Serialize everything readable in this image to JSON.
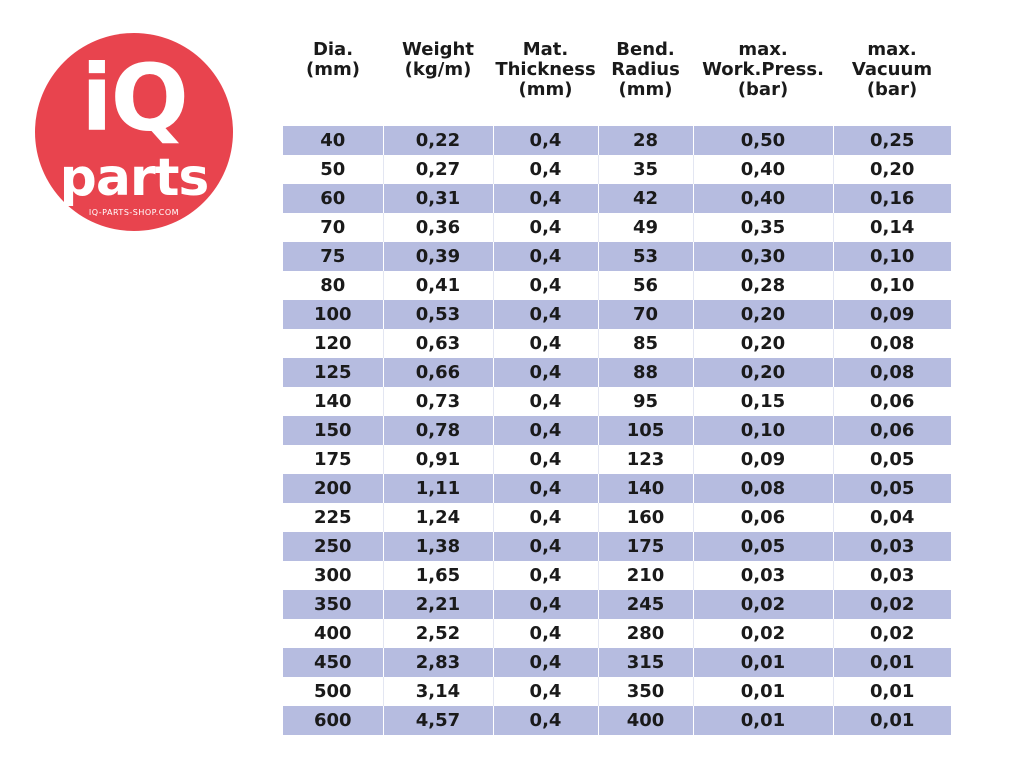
{
  "logo": {
    "brand_iq": "iQ",
    "brand_parts": "parts",
    "url": "IQ-PARTS-SHOP.COM"
  },
  "table": {
    "headers": [
      "Dia.\n(mm)",
      "Weight\n(kg/m)",
      "Mat.\nThickness\n(mm)",
      "Bend.\nRadius\n(mm)",
      "max.\nWork.Press.\n(bar)",
      "max.\nVacuum\n(bar)"
    ],
    "rows": [
      [
        "40",
        "0,22",
        "0,4",
        "28",
        "0,50",
        "0,25"
      ],
      [
        "50",
        "0,27",
        "0,4",
        "35",
        "0,40",
        "0,20"
      ],
      [
        "60",
        "0,31",
        "0,4",
        "42",
        "0,40",
        "0,16"
      ],
      [
        "70",
        "0,36",
        "0,4",
        "49",
        "0,35",
        "0,14"
      ],
      [
        "75",
        "0,39",
        "0,4",
        "53",
        "0,30",
        "0,10"
      ],
      [
        "80",
        "0,41",
        "0,4",
        "56",
        "0,28",
        "0,10"
      ],
      [
        "100",
        "0,53",
        "0,4",
        "70",
        "0,20",
        "0,09"
      ],
      [
        "120",
        "0,63",
        "0,4",
        "85",
        "0,20",
        "0,08"
      ],
      [
        "125",
        "0,66",
        "0,4",
        "88",
        "0,20",
        "0,08"
      ],
      [
        "140",
        "0,73",
        "0,4",
        "95",
        "0,15",
        "0,06"
      ],
      [
        "150",
        "0,78",
        "0,4",
        "105",
        "0,10",
        "0,06"
      ],
      [
        "175",
        "0,91",
        "0,4",
        "123",
        "0,09",
        "0,05"
      ],
      [
        "200",
        "1,11",
        "0,4",
        "140",
        "0,08",
        "0,05"
      ],
      [
        "225",
        "1,24",
        "0,4",
        "160",
        "0,06",
        "0,04"
      ],
      [
        "250",
        "1,38",
        "0,4",
        "175",
        "0,05",
        "0,03"
      ],
      [
        "300",
        "1,65",
        "0,4",
        "210",
        "0,03",
        "0,03"
      ],
      [
        "350",
        "2,21",
        "0,4",
        "245",
        "0,02",
        "0,02"
      ],
      [
        "400",
        "2,52",
        "0,4",
        "280",
        "0,02",
        "0,02"
      ],
      [
        "450",
        "2,83",
        "0,4",
        "315",
        "0,01",
        "0,01"
      ],
      [
        "500",
        "3,14",
        "0,4",
        "350",
        "0,01",
        "0,01"
      ],
      [
        "600",
        "4,57",
        "0,4",
        "400",
        "0,01",
        "0,01"
      ]
    ]
  }
}
